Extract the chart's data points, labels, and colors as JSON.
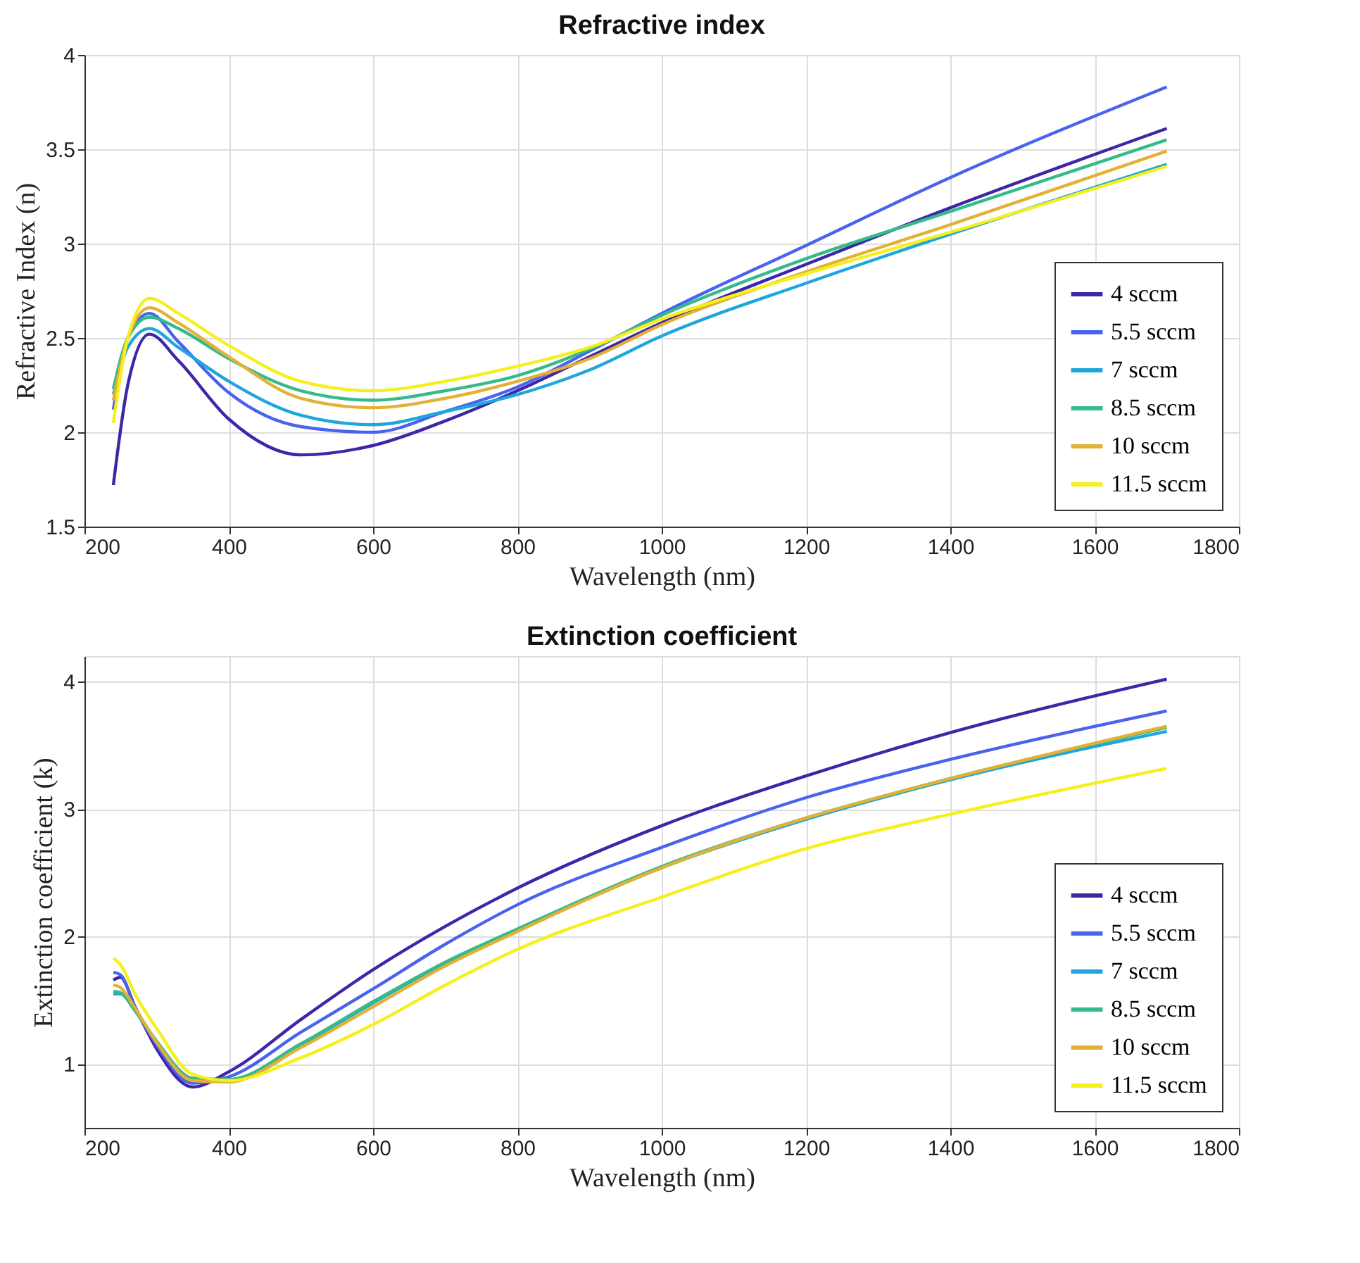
{
  "chart_data": [
    {
      "type": "line",
      "title": "Refractive index",
      "xlabel": "Wavelength (nm)",
      "ylabel": "Refractive Index (n)",
      "x": [
        240,
        260,
        290,
        330,
        400,
        500,
        600,
        700,
        800,
        900,
        1000,
        1200,
        1400,
        1700
      ],
      "xlim": [
        200,
        1800
      ],
      "xticks": [
        200,
        400,
        600,
        800,
        1000,
        1200,
        1400,
        1600,
        1800
      ],
      "ylim": [
        1.5,
        4
      ],
      "yticks": [
        1.5,
        2,
        2.5,
        3,
        3.5,
        4
      ],
      "grid": true,
      "legend": "bottom right",
      "marker": "none",
      "line_style": "solid",
      "series": [
        {
          "name": "4 sccm",
          "color": "#3e26a8",
          "values": [
            1.72,
            2.25,
            2.52,
            2.38,
            2.07,
            1.88,
            1.93,
            2.06,
            2.22,
            2.4,
            2.58,
            2.89,
            3.19,
            3.61
          ]
        },
        {
          "name": "5.5 sccm",
          "color": "#4a63ee",
          "values": [
            2.12,
            2.5,
            2.63,
            2.48,
            2.21,
            2.03,
            2.0,
            2.11,
            2.24,
            2.43,
            2.63,
            2.99,
            3.35,
            3.83
          ]
        },
        {
          "name": "7 sccm",
          "color": "#1fa6dc",
          "values": [
            2.2,
            2.45,
            2.55,
            2.45,
            2.27,
            2.09,
            2.04,
            2.11,
            2.2,
            2.33,
            2.51,
            2.79,
            3.05,
            3.42
          ]
        },
        {
          "name": "8.5 sccm",
          "color": "#35bb8a",
          "values": [
            2.23,
            2.5,
            2.61,
            2.55,
            2.39,
            2.22,
            2.17,
            2.22,
            2.3,
            2.44,
            2.62,
            2.92,
            3.17,
            3.55
          ]
        },
        {
          "name": "10 sccm",
          "color": "#e2b136",
          "values": [
            2.17,
            2.5,
            2.66,
            2.58,
            2.4,
            2.18,
            2.13,
            2.18,
            2.27,
            2.39,
            2.57,
            2.85,
            3.1,
            3.49
          ]
        },
        {
          "name": "11.5 sccm",
          "color": "#f5f01c",
          "values": [
            2.05,
            2.5,
            2.71,
            2.63,
            2.46,
            2.27,
            2.22,
            2.27,
            2.35,
            2.45,
            2.6,
            2.84,
            3.06,
            3.41
          ]
        }
      ]
    },
    {
      "type": "line",
      "title": "Extinction coefficient",
      "xlabel": "Wavelength (nm)",
      "ylabel": "Extinction coefficient  (k)",
      "x": [
        240,
        250,
        270,
        300,
        350,
        400,
        500,
        600,
        700,
        800,
        1000,
        1200,
        1400,
        1700
      ],
      "xlim": [
        200,
        1800
      ],
      "xticks": [
        200,
        400,
        600,
        800,
        1000,
        1200,
        1400,
        1600,
        1800
      ],
      "ylim": [
        0.5,
        4.2
      ],
      "yticks": [
        1,
        2,
        3,
        4
      ],
      "grid": true,
      "legend": "bottom right",
      "marker": "none",
      "line_style": "solid",
      "series": [
        {
          "name": "4 sccm",
          "color": "#3e26a8",
          "values": [
            1.66,
            1.68,
            1.45,
            1.12,
            0.82,
            0.94,
            1.35,
            1.74,
            2.08,
            2.38,
            2.87,
            3.26,
            3.6,
            4.02
          ]
        },
        {
          "name": "5.5 sccm",
          "color": "#4a63ee",
          "values": [
            1.72,
            1.7,
            1.45,
            1.15,
            0.85,
            0.9,
            1.25,
            1.59,
            1.94,
            2.25,
            2.7,
            3.09,
            3.39,
            3.77
          ]
        },
        {
          "name": "7 sccm",
          "color": "#1fa6dc",
          "values": [
            1.55,
            1.55,
            1.42,
            1.17,
            0.88,
            0.87,
            1.15,
            1.48,
            1.79,
            2.05,
            2.54,
            2.92,
            3.23,
            3.61
          ]
        },
        {
          "name": "8.5 sccm",
          "color": "#35bb8a",
          "values": [
            1.57,
            1.56,
            1.42,
            1.18,
            0.89,
            0.88,
            1.16,
            1.49,
            1.8,
            2.06,
            2.55,
            2.93,
            3.24,
            3.64
          ]
        },
        {
          "name": "10 sccm",
          "color": "#e2b136",
          "values": [
            1.62,
            1.6,
            1.44,
            1.17,
            0.87,
            0.86,
            1.13,
            1.45,
            1.77,
            2.04,
            2.54,
            2.93,
            3.24,
            3.65
          ]
        },
        {
          "name": "11.5 sccm",
          "color": "#f5f01c",
          "values": [
            1.83,
            1.78,
            1.55,
            1.28,
            0.92,
            0.87,
            1.05,
            1.31,
            1.62,
            1.9,
            2.31,
            2.69,
            2.96,
            3.32
          ]
        }
      ]
    }
  ]
}
